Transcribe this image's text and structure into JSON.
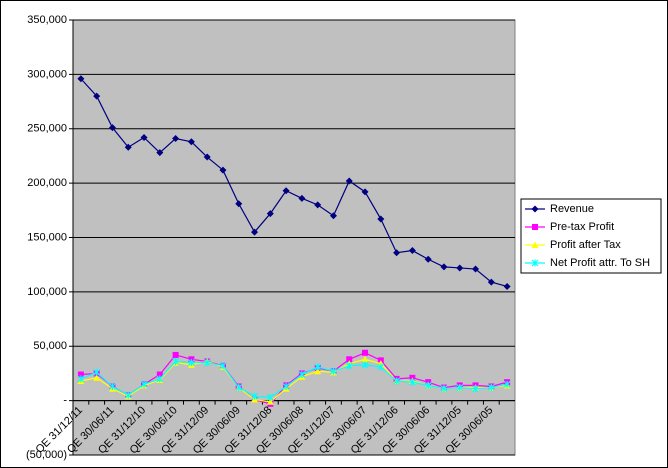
{
  "chart_data": {
    "type": "line",
    "categories": [
      "QE 31/12/11",
      null,
      "QE 30/06/11",
      null,
      "QE 31/12/10",
      null,
      "QE 30/06/10",
      null,
      "QE 31/12/09",
      null,
      "QE 30/06/09",
      null,
      "QE 31/12/08",
      null,
      "QE 30/06/08",
      null,
      "QE 31/12/07",
      null,
      "QE 30/06/07",
      null,
      "QE 31/12/06",
      null,
      "QE 30/06/06",
      null,
      "QE 31/12/05",
      null,
      "QE 30/06/05",
      null
    ],
    "series": [
      {
        "name": "Revenue",
        "color": "#000080",
        "marker": "diamond",
        "values": [
          296000,
          280000,
          251000,
          233000,
          242000,
          228000,
          241000,
          238000,
          224000,
          212000,
          181000,
          155000,
          172000,
          193000,
          186000,
          180000,
          170000,
          202000,
          192000,
          167000,
          136000,
          138000,
          130000,
          123000,
          122000,
          121000,
          109000,
          105000
        ]
      },
      {
        "name": "Pre-tax Profit",
        "color": "#ff00ff",
        "marker": "square",
        "values": [
          24000,
          25000,
          13000,
          5000,
          15000,
          24000,
          42000,
          38000,
          36000,
          32000,
          13000,
          1000,
          -3000,
          14000,
          25000,
          30000,
          27000,
          38000,
          44000,
          37000,
          20000,
          21000,
          17000,
          12000,
          14000,
          14000,
          13000,
          17000
        ]
      },
      {
        "name": "Profit after Tax",
        "color": "#ffff00",
        "marker": "triangle",
        "values": [
          18000,
          21000,
          11000,
          4000,
          14000,
          19000,
          35000,
          33000,
          36000,
          31000,
          12000,
          1000,
          -1000,
          11000,
          22000,
          27000,
          26000,
          34000,
          38000,
          34000,
          18000,
          18000,
          14000,
          11000,
          12000,
          12000,
          12000,
          14000
        ]
      },
      {
        "name": "Net Profit attr. To SH",
        "color": "#00ffff",
        "marker": "x",
        "values": [
          20000,
          26000,
          13000,
          5000,
          15000,
          20000,
          36000,
          35000,
          35000,
          32000,
          12000,
          4000,
          3000,
          13000,
          24000,
          31000,
          27000,
          32000,
          33000,
          31000,
          18000,
          17000,
          14000,
          11000,
          12000,
          11000,
          12000,
          15000
        ]
      }
    ],
    "ylim": [
      -50000,
      350000
    ],
    "yticks": [
      {
        "value": -50000,
        "label": "(50,000)"
      },
      {
        "value": 0,
        "label": "-"
      },
      {
        "value": 50000,
        "label": "50,000"
      },
      {
        "value": 100000,
        "label": "100,000"
      },
      {
        "value": 150000,
        "label": "150,000"
      },
      {
        "value": 200000,
        "label": "200,000"
      },
      {
        "value": 250000,
        "label": "250,000"
      },
      {
        "value": 300000,
        "label": "300,000"
      },
      {
        "value": 350000,
        "label": "350,000"
      }
    ],
    "grid": true,
    "legend": "right",
    "plot_background": "#c0c0c0"
  }
}
